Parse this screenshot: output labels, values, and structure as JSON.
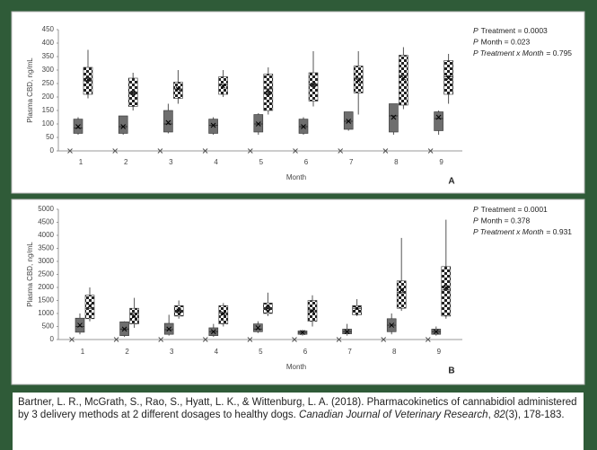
{
  "chart_data": [
    {
      "type": "box",
      "panel": "A",
      "xlabel": "Month",
      "ylabel": "Plasma CBD, ng/mL",
      "categories": [
        "1",
        "2",
        "3",
        "4",
        "5",
        "6",
        "7",
        "8",
        "9"
      ],
      "ylim": [
        0,
        450
      ],
      "yticks": [
        0,
        50,
        100,
        150,
        200,
        250,
        300,
        350,
        400,
        450
      ],
      "grid": false,
      "annotations": [
        {
          "italic": "P",
          "text": "Treatment = 0.0003"
        },
        {
          "italic": "P",
          "text": "Month = 0.023"
        },
        {
          "italic": "P Treatment x Month",
          "text": "= 0.795"
        }
      ],
      "series": [
        {
          "marker": "x",
          "color": "#555555",
          "values": [
            0,
            0,
            0,
            0,
            0,
            0,
            0,
            0,
            0
          ]
        },
        {
          "color": "#6e6e6e",
          "pattern": "solid",
          "values": [
            {
              "min": 60,
              "q1": 65,
              "median": 85,
              "q3": 118,
              "max": 125,
              "mean": 90
            },
            {
              "min": 60,
              "q1": 65,
              "median": 90,
              "q3": 130,
              "max": 130,
              "mean": 90
            },
            {
              "min": 65,
              "q1": 70,
              "median": 100,
              "q3": 150,
              "max": 175,
              "mean": 105
            },
            {
              "min": 60,
              "q1": 65,
              "median": 95,
              "q3": 118,
              "max": 125,
              "mean": 95
            },
            {
              "min": 60,
              "q1": 70,
              "median": 100,
              "q3": 135,
              "max": 140,
              "mean": 100
            },
            {
              "min": 60,
              "q1": 65,
              "median": 90,
              "q3": 118,
              "max": 125,
              "mean": 90
            },
            {
              "min": 75,
              "q1": 80,
              "median": 110,
              "q3": 145,
              "max": 145,
              "mean": 110
            },
            {
              "min": 60,
              "q1": 70,
              "median": 130,
              "q3": 175,
              "max": 175,
              "mean": 125
            },
            {
              "min": 60,
              "q1": 75,
              "median": 120,
              "q3": 145,
              "max": 150,
              "mean": 125
            }
          ]
        },
        {
          "color": "#222222",
          "pattern": "checker",
          "values": [
            {
              "min": 195,
              "q1": 210,
              "median": 260,
              "q3": 310,
              "max": 375,
              "mean": 265
            },
            {
              "min": 150,
              "q1": 165,
              "median": 215,
              "q3": 270,
              "max": 290,
              "mean": 215
            },
            {
              "min": 175,
              "q1": 195,
              "median": 230,
              "q3": 255,
              "max": 300,
              "mean": 230
            },
            {
              "min": 200,
              "q1": 210,
              "median": 245,
              "q3": 275,
              "max": 300,
              "mean": 240
            },
            {
              "min": 135,
              "q1": 150,
              "median": 230,
              "q3": 285,
              "max": 310,
              "mean": 215
            },
            {
              "min": 165,
              "q1": 185,
              "median": 245,
              "q3": 290,
              "max": 370,
              "mean": 245
            },
            {
              "min": 135,
              "q1": 215,
              "median": 270,
              "q3": 315,
              "max": 370,
              "mean": 260
            },
            {
              "min": 155,
              "q1": 170,
              "median": 280,
              "q3": 355,
              "max": 385,
              "mean": 270
            },
            {
              "min": 175,
              "q1": 210,
              "median": 275,
              "q3": 335,
              "max": 360,
              "mean": 270
            }
          ]
        }
      ]
    },
    {
      "type": "box",
      "panel": "B",
      "xlabel": "Month",
      "ylabel": "Plasma CBD, ng/mL",
      "categories": [
        "1",
        "2",
        "3",
        "4",
        "5",
        "6",
        "7",
        "8",
        "9"
      ],
      "ylim": [
        0,
        5000
      ],
      "yticks": [
        0,
        500,
        1000,
        1500,
        2000,
        2500,
        3000,
        3500,
        4000,
        4500,
        5000
      ],
      "grid": false,
      "annotations": [
        {
          "italic": "P",
          "text": "Treatment = 0.0001"
        },
        {
          "italic": "P",
          "text": "Month = 0.378"
        },
        {
          "italic": "P Treatment x Month",
          "text": "= 0.931"
        }
      ],
      "series": [
        {
          "marker": "x",
          "color": "#555555",
          "values": [
            0,
            0,
            0,
            0,
            0,
            0,
            0,
            0,
            0
          ]
        },
        {
          "color": "#6e6e6e",
          "pattern": "solid",
          "values": [
            {
              "min": 200,
              "q1": 280,
              "median": 500,
              "q3": 820,
              "max": 1000,
              "mean": 550
            },
            {
              "min": 100,
              "q1": 150,
              "median": 400,
              "q3": 680,
              "max": 700,
              "mean": 400
            },
            {
              "min": 150,
              "q1": 200,
              "median": 380,
              "q3": 620,
              "max": 950,
              "mean": 400
            },
            {
              "min": 100,
              "q1": 150,
              "median": 300,
              "q3": 450,
              "max": 600,
              "mean": 300
            },
            {
              "min": 250,
              "q1": 300,
              "median": 400,
              "q3": 600,
              "max": 700,
              "mean": 450
            },
            {
              "min": 150,
              "q1": 200,
              "median": 270,
              "q3": 330,
              "max": 380,
              "mean": 270
            },
            {
              "min": 150,
              "q1": 220,
              "median": 300,
              "q3": 400,
              "max": 600,
              "mean": 300
            },
            {
              "min": 200,
              "q1": 300,
              "median": 550,
              "q3": 800,
              "max": 1000,
              "mean": 550
            },
            {
              "min": 150,
              "q1": 200,
              "median": 300,
              "q3": 400,
              "max": 500,
              "mean": 300
            }
          ]
        },
        {
          "color": "#222222",
          "pattern": "checker",
          "values": [
            {
              "min": 700,
              "q1": 800,
              "median": 1200,
              "q3": 1700,
              "max": 2000,
              "mean": 1300
            },
            {
              "min": 450,
              "q1": 600,
              "median": 1000,
              "q3": 1200,
              "max": 1600,
              "mean": 900
            },
            {
              "min": 800,
              "q1": 900,
              "median": 1100,
              "q3": 1300,
              "max": 1500,
              "mean": 1100
            },
            {
              "min": 500,
              "q1": 600,
              "median": 1000,
              "q3": 1300,
              "max": 1400,
              "mean": 1000
            },
            {
              "min": 900,
              "q1": 1000,
              "median": 1200,
              "q3": 1400,
              "max": 1800,
              "mean": 1200
            },
            {
              "min": 500,
              "q1": 700,
              "median": 1100,
              "q3": 1500,
              "max": 1700,
              "mean": 1100
            },
            {
              "min": 900,
              "q1": 950,
              "median": 1200,
              "q3": 1300,
              "max": 1550,
              "mean": 1200
            },
            {
              "min": 1100,
              "q1": 1200,
              "median": 1800,
              "q3": 2250,
              "max": 3900,
              "mean": 1900
            },
            {
              "min": 800,
              "q1": 900,
              "median": 1900,
              "q3": 2800,
              "max": 4600,
              "mean": 2000
            }
          ]
        }
      ]
    }
  ],
  "citation": [
    {
      "text": "Bartner, L. R., McGrath, S., Rao, S., Hyatt, L. K., & Wittenburg, L. A. (2018). Pharmacokinetics of cannabidiol administered by 3 delivery methods at 2 different dosages to healthy dogs. ",
      "italic": false
    },
    {
      "text": "Canadian Journal of Veterinary Research",
      "italic": true
    },
    {
      "text": ", ",
      "italic": false
    },
    {
      "text": "82",
      "italic": true
    },
    {
      "text": "(3), 178-183.",
      "italic": false
    }
  ]
}
